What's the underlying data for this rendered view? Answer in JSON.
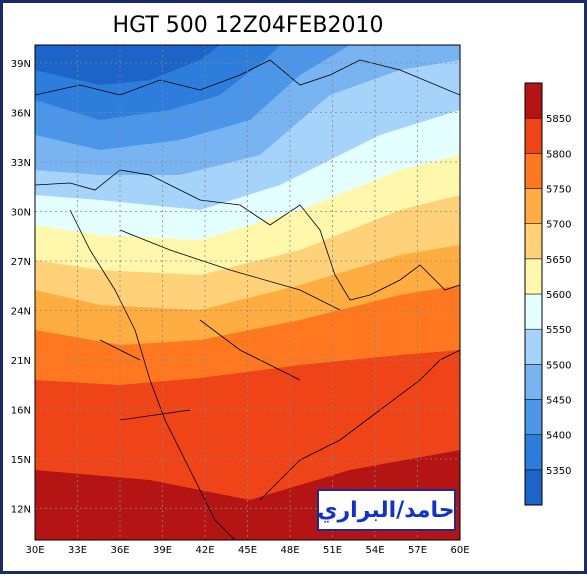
{
  "header": {
    "title": "HGT 500 12Z04FEB2010"
  },
  "map": {
    "lat_labels": [
      "39N",
      "36N",
      "33N",
      "30N",
      "27N",
      "24N",
      "21N",
      "16N",
      "15N",
      "12N"
    ],
    "lon_labels": [
      "30E",
      "33E",
      "36E",
      "39E",
      "42E",
      "45E",
      "48E",
      "51E",
      "54E",
      "57E",
      "60E"
    ],
    "watermark": "حامد/البراري"
  },
  "colorbar": {
    "labels": [
      "5350",
      "5400",
      "5450",
      "5500",
      "5550",
      "5600",
      "5650",
      "5700",
      "5750",
      "5800",
      "5850"
    ],
    "colors": [
      "#1c64c8",
      "#2d7ddc",
      "#4b96e8",
      "#78b4f2",
      "#a5d3fa",
      "#e4ffff",
      "#fff8ac",
      "#ffd27a",
      "#ffad40",
      "#ff7820",
      "#ee4418",
      "#b41414"
    ]
  }
}
